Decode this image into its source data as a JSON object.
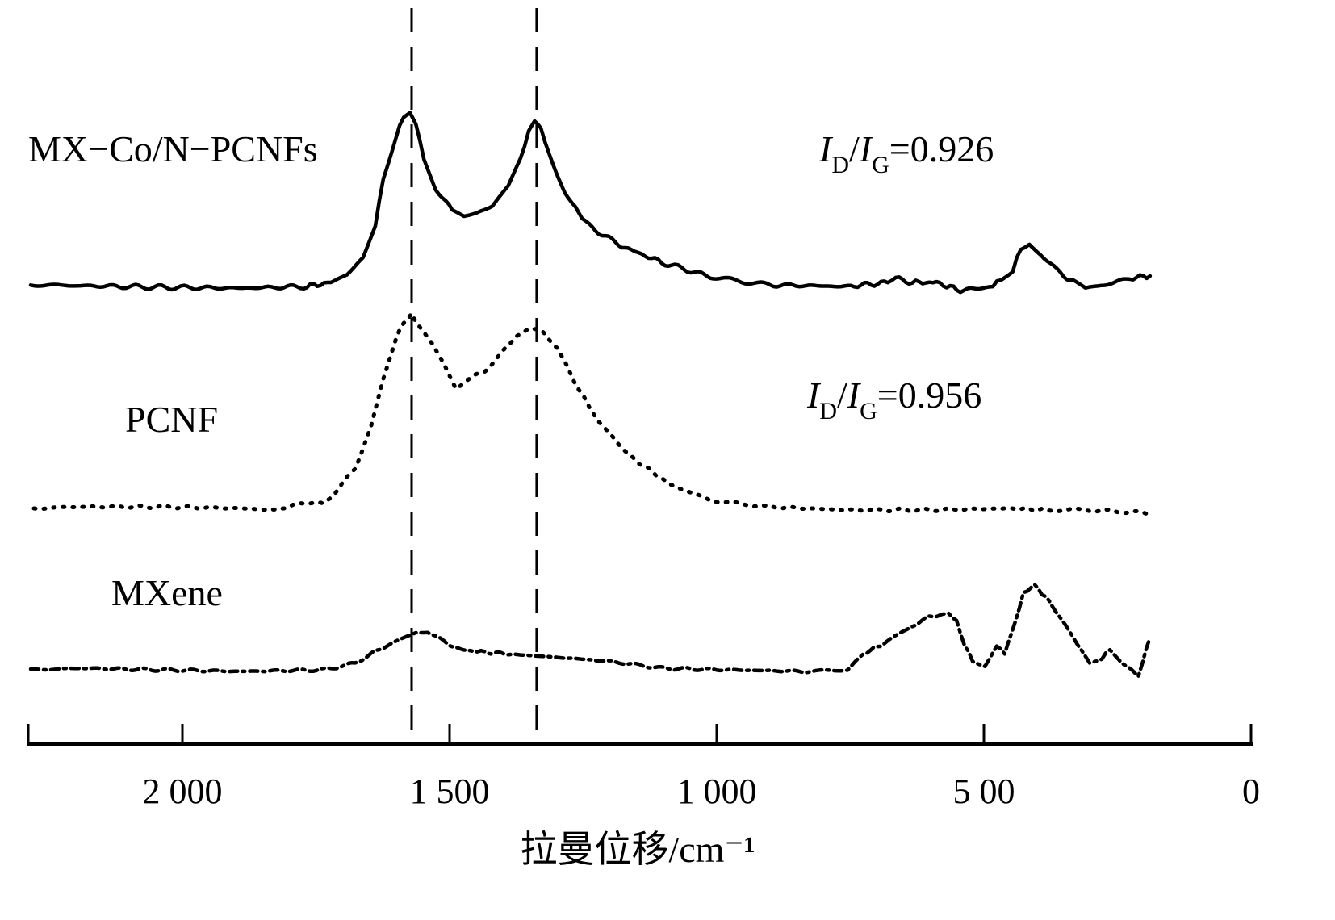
{
  "chart_data": {
    "type": "line",
    "title": "",
    "xlabel": "拉曼位移/cm⁻¹",
    "ylabel": "",
    "x_reversed": true,
    "xlim": [
      2290,
      0
    ],
    "x_ticks": [
      2000,
      1500,
      1000,
      500,
      0
    ],
    "x_tick_labels": [
      "2 000",
      "1 500",
      "1 000",
      "5 00",
      "0"
    ],
    "y_axis_shown": false,
    "grid": false,
    "reference_lines": [
      1571,
      1337
    ],
    "annotations": [
      {
        "label": "I_D/I_G=0.926",
        "parts": [
          "I",
          "D",
          "/",
          "I",
          "G",
          "=0.926"
        ]
      },
      {
        "label": "I_D/I_G=0.956",
        "parts": [
          "I",
          "D",
          "/",
          "I",
          "G",
          "=0.956"
        ]
      }
    ],
    "series": [
      {
        "name": "MX−Co/N−PCNFs",
        "style": "solid",
        "points": [
          [
            2284,
            5.47
          ],
          [
            2190,
            5.46
          ],
          [
            2039,
            5.44
          ],
          [
            1888,
            5.43
          ],
          [
            1767,
            5.45
          ],
          [
            1722,
            5.5
          ],
          [
            1692,
            5.6
          ],
          [
            1662,
            5.8
          ],
          [
            1639,
            6.2
          ],
          [
            1624,
            6.8
          ],
          [
            1601,
            7.3
          ],
          [
            1586,
            7.55
          ],
          [
            1574,
            7.6
          ],
          [
            1563,
            7.45
          ],
          [
            1548,
            7.05
          ],
          [
            1526,
            6.65
          ],
          [
            1495,
            6.4
          ],
          [
            1473,
            6.32
          ],
          [
            1450,
            6.35
          ],
          [
            1420,
            6.45
          ],
          [
            1390,
            6.7
          ],
          [
            1367,
            7.05
          ],
          [
            1352,
            7.35
          ],
          [
            1341,
            7.48
          ],
          [
            1329,
            7.4
          ],
          [
            1314,
            7.1
          ],
          [
            1284,
            6.6
          ],
          [
            1239,
            6.2
          ],
          [
            1178,
            5.95
          ],
          [
            1103,
            5.75
          ],
          [
            1012,
            5.57
          ],
          [
            906,
            5.47
          ],
          [
            755,
            5.45
          ],
          [
            680,
            5.5
          ],
          [
            665,
            5.55
          ],
          [
            634,
            5.5
          ],
          [
            589,
            5.5
          ],
          [
            544,
            5.4
          ],
          [
            483,
            5.45
          ],
          [
            468,
            5.55
          ],
          [
            446,
            5.65
          ],
          [
            431,
            5.92
          ],
          [
            415,
            6.0
          ],
          [
            393,
            5.85
          ],
          [
            363,
            5.65
          ],
          [
            332,
            5.5
          ],
          [
            310,
            5.42
          ],
          [
            287,
            5.45
          ],
          [
            227,
            5.55
          ],
          [
            189,
            5.58
          ]
        ]
      },
      {
        "name": "PCNF",
        "style": "dotted",
        "points": [
          [
            2278,
            2.7
          ],
          [
            2190,
            2.72
          ],
          [
            2039,
            2.72
          ],
          [
            1888,
            2.7
          ],
          [
            1828,
            2.68
          ],
          [
            1767,
            2.78
          ],
          [
            1737,
            2.75
          ],
          [
            1707,
            2.95
          ],
          [
            1677,
            3.2
          ],
          [
            1647,
            3.7
          ],
          [
            1624,
            4.3
          ],
          [
            1601,
            4.8
          ],
          [
            1586,
            5.0
          ],
          [
            1571,
            5.1
          ],
          [
            1556,
            4.95
          ],
          [
            1533,
            4.75
          ],
          [
            1511,
            4.5
          ],
          [
            1488,
            4.2
          ],
          [
            1465,
            4.3
          ],
          [
            1435,
            4.4
          ],
          [
            1405,
            4.6
          ],
          [
            1375,
            4.85
          ],
          [
            1352,
            4.92
          ],
          [
            1329,
            4.9
          ],
          [
            1299,
            4.7
          ],
          [
            1269,
            4.3
          ],
          [
            1224,
            3.8
          ],
          [
            1163,
            3.35
          ],
          [
            1088,
            3.0
          ],
          [
            1012,
            2.8
          ],
          [
            906,
            2.72
          ],
          [
            755,
            2.68
          ],
          [
            604,
            2.68
          ],
          [
            453,
            2.7
          ],
          [
            378,
            2.68
          ],
          [
            302,
            2.68
          ],
          [
            189,
            2.64
          ]
        ]
      },
      {
        "name": "MXene",
        "style": "dash-dot",
        "points": [
          [
            2284,
            0.7
          ],
          [
            2190,
            0.72
          ],
          [
            2039,
            0.7
          ],
          [
            1888,
            0.68
          ],
          [
            1737,
            0.7
          ],
          [
            1677,
            0.78
          ],
          [
            1647,
            0.9
          ],
          [
            1616,
            1.0
          ],
          [
            1586,
            1.1
          ],
          [
            1563,
            1.17
          ],
          [
            1541,
            1.18
          ],
          [
            1511,
            1.05
          ],
          [
            1480,
            0.95
          ],
          [
            1435,
            0.92
          ],
          [
            1360,
            0.88
          ],
          [
            1284,
            0.85
          ],
          [
            1193,
            0.8
          ],
          [
            1103,
            0.72
          ],
          [
            982,
            0.7
          ],
          [
            831,
            0.68
          ],
          [
            755,
            0.7
          ],
          [
            725,
            0.9
          ],
          [
            680,
            1.05
          ],
          [
            634,
            1.25
          ],
          [
            604,
            1.35
          ],
          [
            566,
            1.4
          ],
          [
            551,
            1.3
          ],
          [
            536,
            1.0
          ],
          [
            521,
            0.82
          ],
          [
            498,
            0.75
          ],
          [
            476,
            1.0
          ],
          [
            461,
            0.9
          ],
          [
            441,
            1.3
          ],
          [
            426,
            1.65
          ],
          [
            405,
            1.75
          ],
          [
            378,
            1.55
          ],
          [
            347,
            1.25
          ],
          [
            325,
            1.0
          ],
          [
            302,
            0.78
          ],
          [
            279,
            0.85
          ],
          [
            264,
            0.95
          ],
          [
            242,
            0.8
          ],
          [
            211,
            0.62
          ],
          [
            196,
            0.95
          ],
          [
            189,
            1.1
          ]
        ]
      }
    ],
    "colors": {
      "line": "#000000"
    }
  }
}
